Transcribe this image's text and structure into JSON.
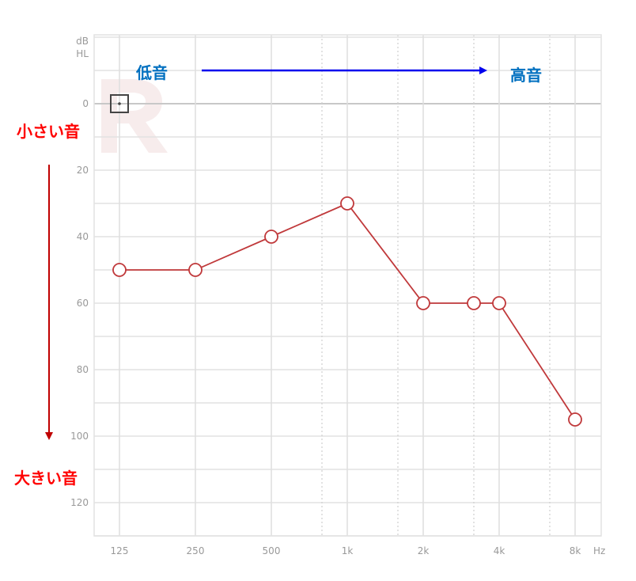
{
  "chart_data": {
    "type": "line",
    "title": "",
    "xlabel": "Hz",
    "ylabel": "dB HL",
    "ylabel_lines": [
      "dB",
      "HL"
    ],
    "x_scale": "log2",
    "y_reversed": true,
    "ylim": [
      -20,
      130
    ],
    "grid": true,
    "x_ticks": [
      125,
      250,
      500,
      1000,
      2000,
      4000,
      8000
    ],
    "x_tick_labels": [
      "125",
      "250",
      "500",
      "1k",
      "2k",
      "4k",
      "8k"
    ],
    "x_minor_dotted": [
      750,
      1500,
      3000,
      6000
    ],
    "y_ticks": [
      0,
      20,
      40,
      60,
      80,
      100,
      120
    ],
    "y_tick_labels": [
      "0",
      "20",
      "40",
      "60",
      "80",
      "100",
      "120"
    ],
    "ear_watermark": "R",
    "series": [
      {
        "color": "#c0393b",
        "marker": "circle",
        "x": [
          125,
          250,
          500,
          1000,
          2000,
          3000,
          4000,
          8000
        ],
        "y": [
          50,
          50,
          40,
          30,
          60,
          60,
          60,
          95
        ]
      }
    ],
    "annotations": {
      "low": "低音",
      "high": "高音",
      "quiet": "小さい音",
      "loud": "大きい音",
      "low_high_color": "#0070c0",
      "quiet_loud_color": "#ff0000",
      "blue_arrow_color": "#0000ee",
      "red_arrow_color": "#c00000"
    }
  }
}
